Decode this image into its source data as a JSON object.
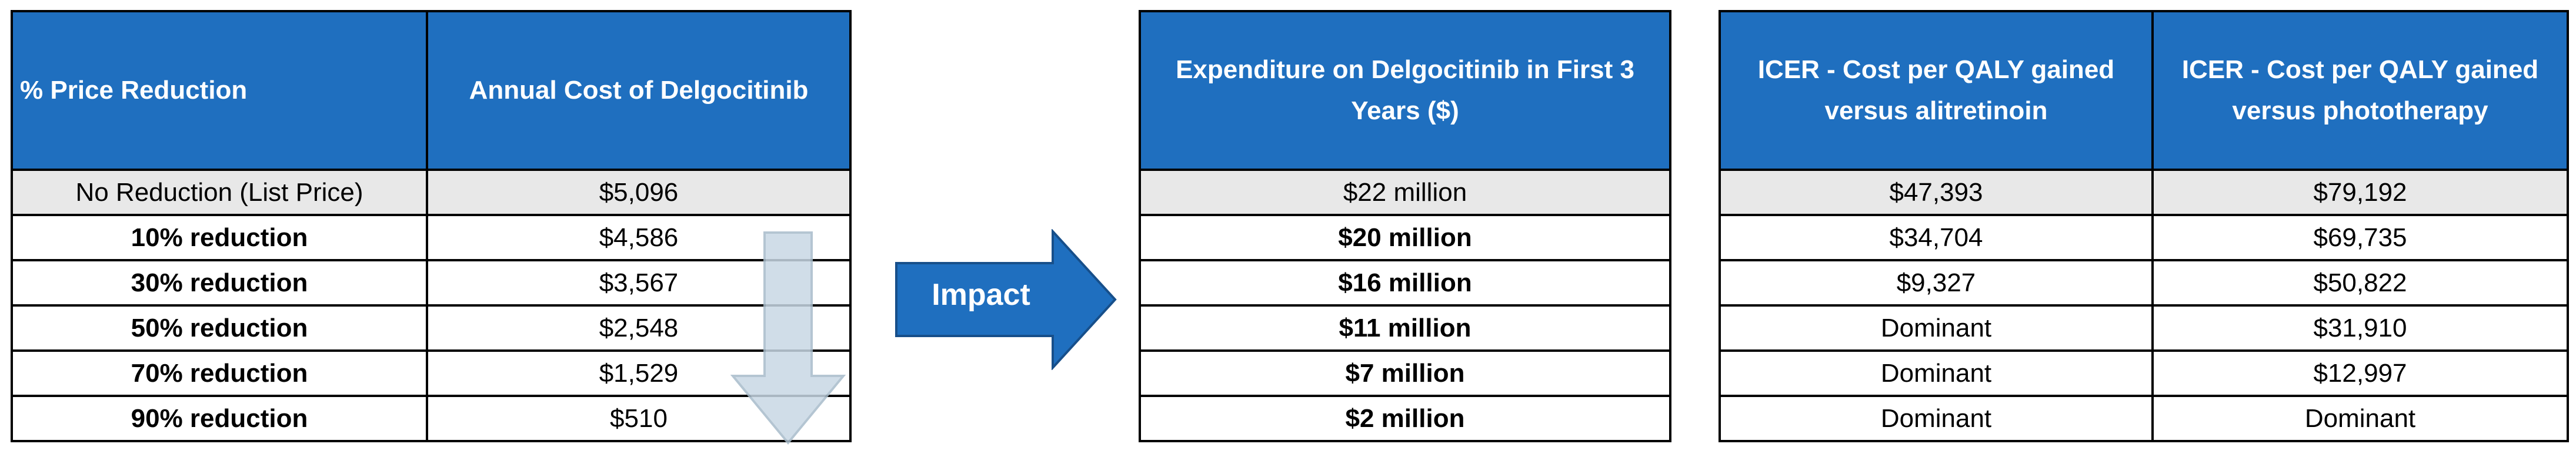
{
  "left_table": {
    "headers": [
      "% Price Reduction",
      "Annual Cost of Delgocitinib"
    ],
    "rows": [
      [
        "No Reduction (List Price)",
        "$5,096"
      ],
      [
        "10% reduction",
        "$4,586"
      ],
      [
        "30% reduction",
        "$3,567"
      ],
      [
        "50% reduction",
        "$2,548"
      ],
      [
        "70% reduction",
        "$1,529"
      ],
      [
        "90% reduction",
        "$510"
      ]
    ]
  },
  "impact_label": "Impact",
  "middle_table": {
    "header": "Expenditure on Delgocitinib in First 3 Years ($)",
    "rows": [
      "$22 million",
      "$20 million",
      "$16 million",
      "$11 million",
      "$7 million",
      "$2 million"
    ]
  },
  "right_table": {
    "headers": [
      "ICER - Cost per QALY gained versus alitretinoin",
      "ICER - Cost per QALY gained versus phototherapy"
    ],
    "rows": [
      [
        "$47,393",
        "$79,192"
      ],
      [
        "$34,704",
        "$69,735"
      ],
      [
        "$9,327",
        "$50,822"
      ],
      [
        "Dominant",
        "$31,910"
      ],
      [
        "Dominant",
        "$12,997"
      ],
      [
        "Dominant",
        "Dominant"
      ]
    ]
  },
  "colors": {
    "header_blue": "#1f6fbf",
    "first_row_gray": "#e8e8e8",
    "down_arrow": "#c8d8e4",
    "impact_arrow": "#1f6fbf"
  },
  "icons": [
    "down-arrow-icon",
    "right-arrow-icon"
  ]
}
